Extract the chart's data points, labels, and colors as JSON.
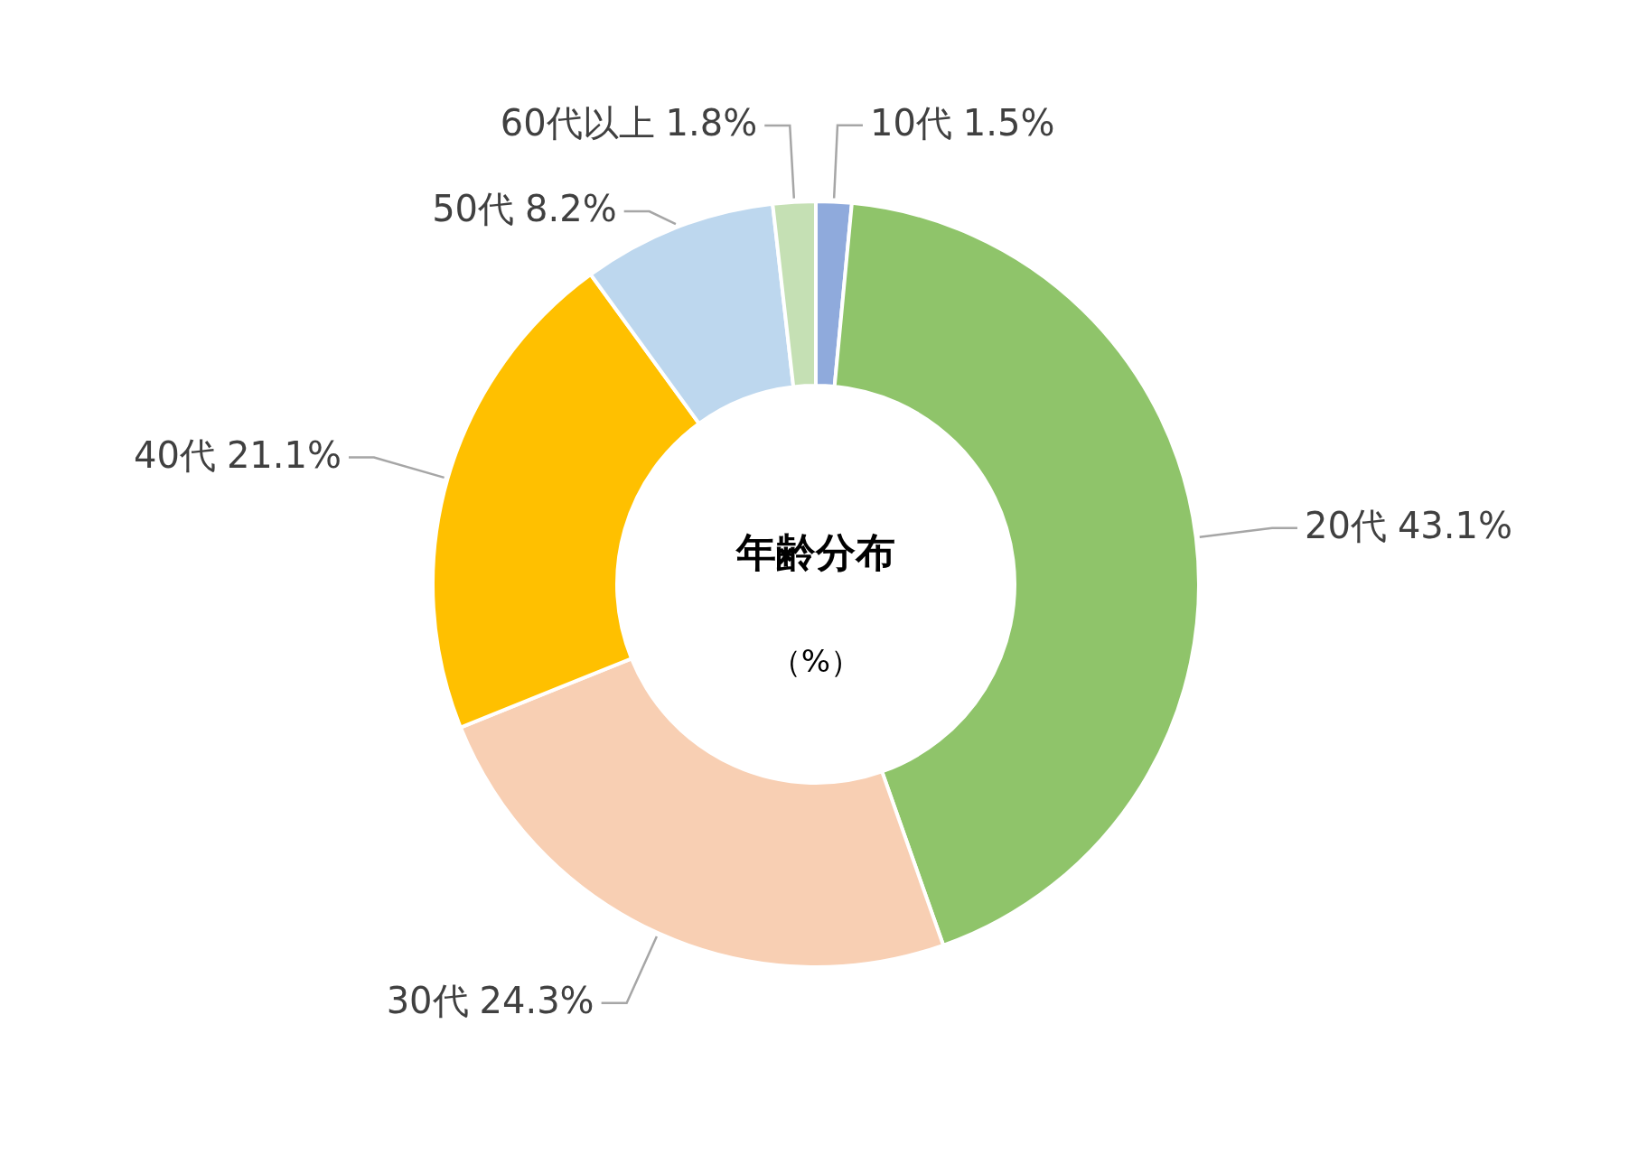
{
  "chart_data": {
    "type": "donut",
    "title": "年齢分布",
    "subtitle": "（%）",
    "categories": [
      "10代",
      "20代",
      "30代",
      "40代",
      "50代",
      "60代以上"
    ],
    "values": [
      1.5,
      43.1,
      24.3,
      21.1,
      8.2,
      1.8
    ],
    "colors": [
      "#8faadc",
      "#8fc46a",
      "#f8cfb3",
      "#ffc000",
      "#bdd7ee",
      "#c5e0b4"
    ],
    "value_labels": [
      "1.5%",
      "43.1%",
      "24.3%",
      "21.1%",
      "8.2%",
      "1.8%"
    ]
  }
}
